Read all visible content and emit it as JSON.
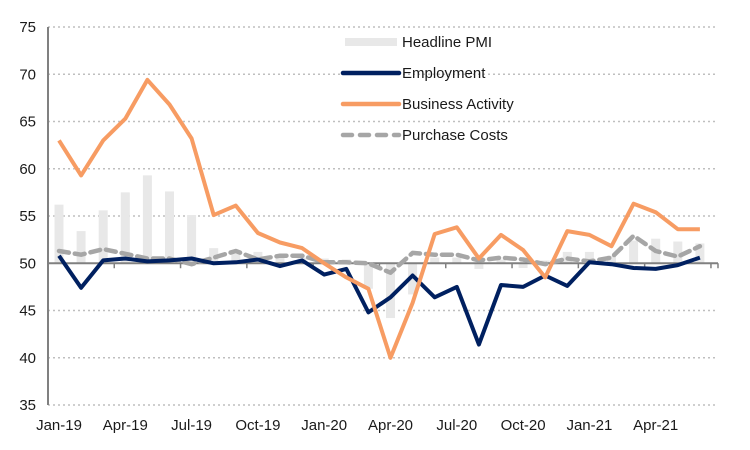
{
  "chart_data": {
    "type": "line",
    "title": "",
    "xlabel": "",
    "ylabel": "",
    "ylim": [
      35,
      75
    ],
    "yticks": [
      35,
      40,
      45,
      50,
      55,
      60,
      65,
      70,
      75
    ],
    "x_axis_crosses_at": 50,
    "grid": true,
    "legend_position": "top-center",
    "categories": [
      "Jan-19",
      "Feb-19",
      "Mar-19",
      "Apr-19",
      "May-19",
      "Jun-19",
      "Jul-19",
      "Aug-19",
      "Sep-19",
      "Oct-19",
      "Nov-19",
      "Dec-19",
      "Jan-20",
      "Feb-20",
      "Mar-20",
      "Apr-20",
      "May-20",
      "Jun-20",
      "Jul-20",
      "Aug-20",
      "Sep-20",
      "Oct-20",
      "Nov-20",
      "Dec-20",
      "Jan-21",
      "Feb-21",
      "Mar-21",
      "Apr-21",
      "May-21",
      "Jun-21"
    ],
    "xtick_labels": [
      "Jan-19",
      "Apr-19",
      "Jul-19",
      "Oct-19",
      "Jan-20",
      "Apr-20",
      "Jul-20",
      "Oct-20",
      "Jan-21",
      "Apr-21"
    ],
    "series": [
      {
        "name": "Headline PMI",
        "type": "bar",
        "color": "#e8e8e8",
        "values": [
          56.2,
          53.4,
          55.6,
          57.5,
          59.3,
          57.6,
          55.1,
          51.6,
          51.0,
          51.2,
          50.8,
          50.6,
          50.5,
          50.4,
          47.3,
          44.2,
          46.7,
          50.6,
          50.6,
          49.4,
          50.4,
          49.5,
          50.3,
          51.2,
          51.2,
          50.8,
          52.4,
          52.6,
          52.3,
          52.1
        ]
      },
      {
        "name": "Employment",
        "type": "line",
        "color": "#002060",
        "dashed": false,
        "values": [
          50.8,
          47.4,
          50.3,
          50.5,
          50.2,
          50.3,
          50.5,
          50.0,
          50.1,
          50.4,
          49.7,
          50.3,
          48.8,
          49.4,
          44.8,
          46.4,
          48.7,
          46.4,
          47.5,
          41.4,
          47.7,
          47.5,
          48.7,
          47.6,
          50.1,
          49.9,
          49.5,
          49.4,
          49.8,
          50.6
        ]
      },
      {
        "name": "Business Activity",
        "type": "line",
        "color": "#f79c63",
        "dashed": false,
        "values": [
          63.0,
          59.3,
          63.0,
          65.3,
          69.4,
          66.8,
          63.2,
          55.1,
          56.1,
          53.2,
          52.2,
          51.6,
          50.0,
          48.5,
          47.3,
          40.0,
          45.8,
          53.1,
          53.8,
          50.5,
          53.0,
          51.4,
          48.5,
          53.4,
          53.0,
          51.8,
          56.3,
          55.4,
          53.6,
          53.6
        ]
      },
      {
        "name": "Purchase Costs",
        "type": "line",
        "color": "#a6a6a6",
        "dashed": true,
        "values": [
          51.3,
          50.9,
          51.5,
          51.0,
          50.5,
          50.5,
          49.9,
          50.6,
          51.3,
          50.4,
          50.8,
          50.8,
          50.1,
          50.1,
          50.0,
          49.0,
          51.1,
          50.9,
          50.9,
          50.3,
          50.6,
          50.4,
          49.9,
          50.5,
          50.2,
          50.6,
          52.9,
          51.3,
          50.7,
          51.8
        ]
      }
    ]
  }
}
